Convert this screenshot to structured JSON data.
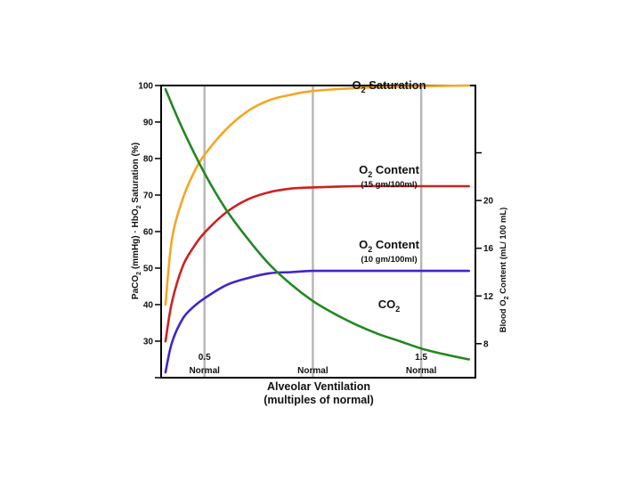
{
  "chart_data": {
    "type": "line",
    "xlabel": "Alveolar Ventilation",
    "xlabel_sub": "(multiples of normal)",
    "xlim": [
      0.3,
      1.75
    ],
    "ylabel_left": "PaCO2 (mmHg) · HbO2 Saturation (%)",
    "ylim_left": [
      20,
      100
    ],
    "ylabel_right": "Blood O2 Content (mL/ 100 mL)",
    "ylim_right": [
      5.15,
      29.64
    ],
    "grid": "vertical lines at 0.5, 1.0, 1.5",
    "x_ticks": [
      {
        "value": 0.5,
        "label": "0.5",
        "sub": "Normal"
      },
      {
        "value": 1.0,
        "label": "",
        "sub": "Normal"
      },
      {
        "value": 1.5,
        "label": "1.5",
        "sub": "Normal"
      }
    ],
    "y_ticks_left": [
      {
        "value": 100,
        "label": "100"
      },
      {
        "value": 90,
        "label": "90"
      },
      {
        "value": 80,
        "label": "80"
      },
      {
        "value": 70,
        "label": "70"
      },
      {
        "value": 60,
        "label": "60"
      },
      {
        "value": 50,
        "label": "50"
      },
      {
        "value": 40,
        "label": "40"
      },
      {
        "value": 30,
        "label": "30"
      },
      {
        "value": 20,
        "label": ""
      }
    ],
    "y_ticks_right": [
      {
        "value": 8,
        "label": "8"
      },
      {
        "value": 12,
        "label": "12"
      },
      {
        "value": 16,
        "label": "16"
      },
      {
        "value": 20,
        "label": "20"
      },
      {
        "value": 24,
        "label": ""
      }
    ],
    "series": [
      {
        "key": "o2sat",
        "axis": "left",
        "color": "#f5a623",
        "x": [
          0.32,
          0.35,
          0.4,
          0.45,
          0.5,
          0.6,
          0.7,
          0.8,
          0.9,
          1.0,
          1.2,
          1.4,
          1.6,
          1.72
        ],
        "y": [
          40,
          58,
          69,
          76,
          81,
          88,
          93,
          96,
          97.5,
          98.5,
          99.3,
          99.7,
          99.9,
          100
        ]
      },
      {
        "key": "o2content15",
        "axis": "right",
        "color": "#cc2222",
        "x": [
          0.32,
          0.35,
          0.4,
          0.45,
          0.5,
          0.6,
          0.7,
          0.8,
          0.9,
          1.0,
          1.2,
          1.4,
          1.6,
          1.72
        ],
        "y": [
          8.2,
          11.5,
          14.5,
          16.1,
          17.3,
          19.0,
          20.1,
          20.7,
          21.0,
          21.1,
          21.2,
          21.2,
          21.2,
          21.2
        ]
      },
      {
        "key": "o2content10",
        "axis": "right",
        "color": "#4422cc",
        "x": [
          0.32,
          0.35,
          0.4,
          0.45,
          0.5,
          0.6,
          0.7,
          0.8,
          0.9,
          1.0,
          1.2,
          1.4,
          1.6,
          1.72
        ],
        "y": [
          5.6,
          8.1,
          10.1,
          11.1,
          11.8,
          12.9,
          13.5,
          13.9,
          14.0,
          14.1,
          14.1,
          14.1,
          14.1,
          14.1
        ]
      },
      {
        "key": "co2",
        "axis": "left",
        "color": "#228822",
        "x": [
          0.32,
          0.4,
          0.5,
          0.6,
          0.7,
          0.8,
          0.9,
          1.0,
          1.1,
          1.2,
          1.3,
          1.4,
          1.5,
          1.6,
          1.72
        ],
        "y": [
          99,
          88,
          76,
          66,
          58,
          51,
          45.5,
          41,
          37.5,
          34.5,
          32,
          30,
          28,
          26.5,
          25
        ]
      }
    ],
    "annotations": [
      {
        "key": "o2sat",
        "main": "O",
        "sub": "2",
        "rest": " Saturation",
        "note": ""
      },
      {
        "key": "o2content15",
        "main": "O",
        "sub": "2",
        "rest": " Content",
        "note": "(15 gm/100ml)"
      },
      {
        "key": "o2content10",
        "main": "O",
        "sub": "2",
        "rest": " Content",
        "note": "(10 gm/100ml)"
      },
      {
        "key": "co2",
        "main": "CO",
        "sub": "2",
        "rest": "",
        "note": ""
      }
    ]
  }
}
